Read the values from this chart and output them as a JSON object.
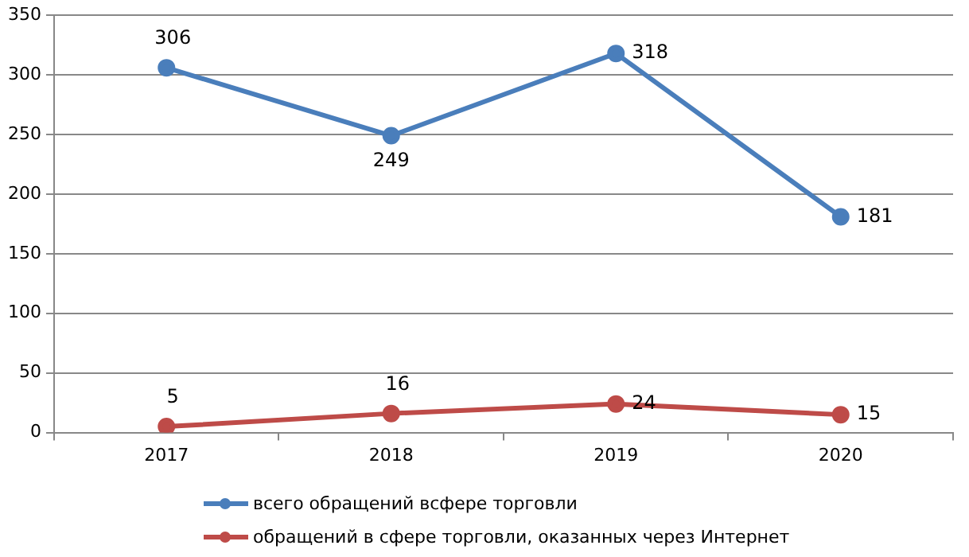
{
  "chart_data": {
    "type": "line",
    "categories": [
      "2017",
      "2018",
      "2019",
      "2020"
    ],
    "series": [
      {
        "name": "всего обращений всфере торговли",
        "color": "#4a7ebb",
        "values": [
          306,
          249,
          318,
          181
        ]
      },
      {
        "name": "обращений в сфере торговли, оказанных через Интернет",
        "color": "#be4b48",
        "values": [
          5,
          16,
          24,
          15
        ]
      }
    ],
    "ylim": [
      0,
      350
    ],
    "yticks": [
      0,
      50,
      100,
      150,
      200,
      250,
      300,
      350
    ],
    "grid": "y",
    "legend": "bottom",
    "marker": "circle",
    "line_style": "solid",
    "data_labels": true
  }
}
